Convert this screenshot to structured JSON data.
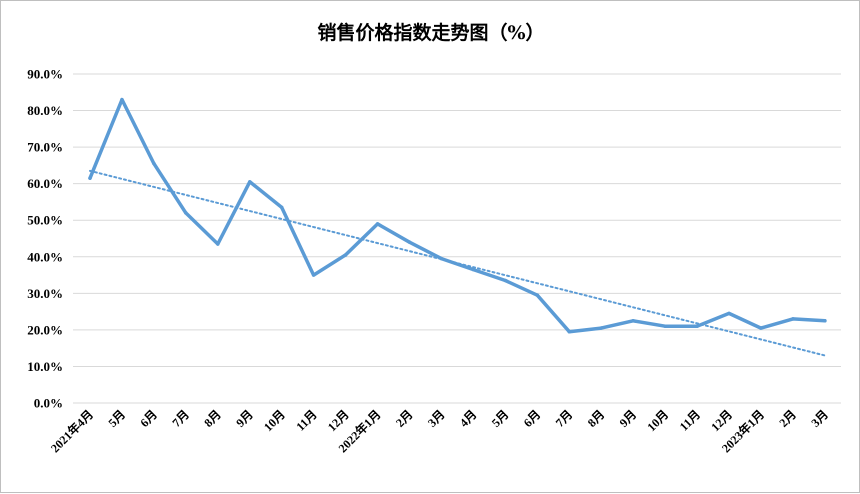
{
  "chart_data": {
    "type": "line",
    "title": "销售价格指数走势图（%）",
    "xlabel": "",
    "ylabel": "",
    "ylim": [
      0,
      90
    ],
    "y_ticks": [
      "0.0%",
      "10.0%",
      "20.0%",
      "30.0%",
      "40.0%",
      "50.0%",
      "60.0%",
      "70.0%",
      "80.0%",
      "90.0%"
    ],
    "grid": true,
    "legend": "none",
    "categories": [
      "2021年4月",
      "5月",
      "6月",
      "7月",
      "8月",
      "9月",
      "10月",
      "11月",
      "12月",
      "2022年1月",
      "2月",
      "3月",
      "4月",
      "5月",
      "6月",
      "7月",
      "8月",
      "9月",
      "10月",
      "11月",
      "12月",
      "2023年1月",
      "2月",
      "3月"
    ],
    "series": [
      {
        "values": [
          61.5,
          83.0,
          65.5,
          52.0,
          43.5,
          60.5,
          53.5,
          35.0,
          40.5,
          49.0,
          44.0,
          39.5,
          36.5,
          33.5,
          29.5,
          19.5,
          20.5,
          22.5,
          21.0,
          21.0,
          24.5,
          20.5,
          23.0,
          22.5
        ],
        "color": "#5b9bd5",
        "style": "solid"
      }
    ],
    "trendline": {
      "type": "linear",
      "start": 63.5,
      "end": 13.0,
      "color": "#5b9bd5",
      "style": "dotted"
    }
  }
}
